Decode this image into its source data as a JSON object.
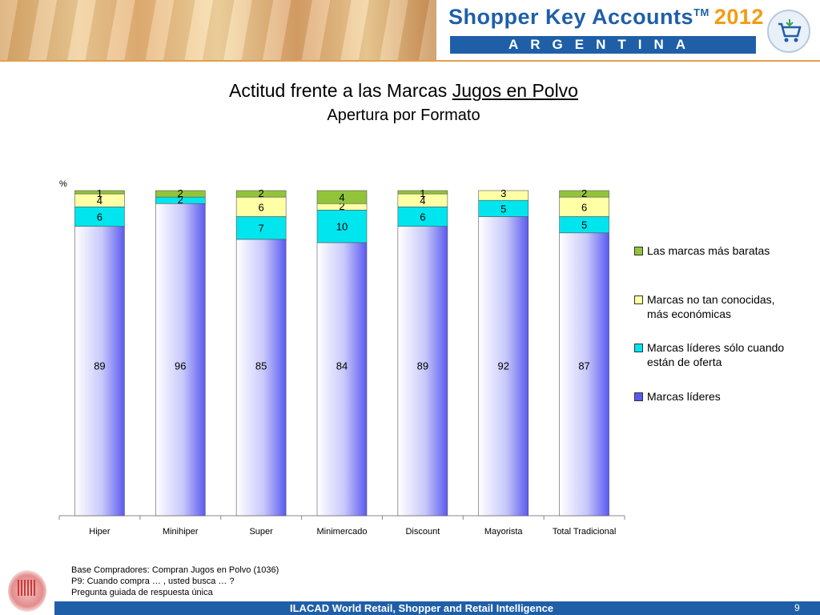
{
  "header": {
    "brand": "Shopper Key Accounts",
    "trademark": "TM",
    "year": "2012",
    "country": "ARGENTINA"
  },
  "title": {
    "prefix": "Actitud frente a las Marcas",
    "underlined": "Jugos en Polvo",
    "subtitle": "Apertura por Formato"
  },
  "colors": {
    "lideres": "#5a5af0",
    "oferta": "#00e5ee",
    "no_conocidas": "#ffffa6",
    "baratas": "#92c43a",
    "header_blue": "#1f5fa8",
    "year_orange": "#f39c12"
  },
  "chart_data": {
    "type": "bar",
    "stacked": true,
    "y_unit": "%",
    "ylim": [
      0,
      100
    ],
    "grid": false,
    "legend_position": "right",
    "categories": [
      "Hiper",
      "Minihiper",
      "Super",
      "Minimercado",
      "Discount",
      "Mayorista",
      "Total Tradicional"
    ],
    "series": [
      {
        "name": "Marcas líderes",
        "values": [
          89,
          96,
          85,
          84,
          89,
          92,
          87
        ]
      },
      {
        "name": "Marcas líderes sólo cuando están de oferta",
        "values": [
          6,
          2,
          7,
          10,
          6,
          5,
          5
        ]
      },
      {
        "name": "Marcas no tan conocidas, más económicas",
        "values": [
          4,
          null,
          6,
          2,
          4,
          3,
          6
        ]
      },
      {
        "name": "Las marcas más baratas",
        "values": [
          1,
          2,
          2,
          4,
          1,
          null,
          2
        ]
      }
    ]
  },
  "legend": [
    {
      "label": "Las marcas más baratas",
      "color": "#92c43a"
    },
    {
      "label": "Marcas no tan conocidas, más económicas",
      "color": "#ffffa6"
    },
    {
      "label": "Marcas líderes sólo cuando están de oferta",
      "color": "#00e5ee"
    },
    {
      "label": "Marcas líderes",
      "color": "#5a5af0"
    }
  ],
  "notes": [
    "Base Compradores: Compran Jugos en Polvo (1036)",
    "P9: Cuando compra … , usted busca … ?",
    "Pregunta guiada de respuesta única"
  ],
  "footer": {
    "text": "ILACAD World Retail, Shopper and Retail Intelligence",
    "page": "9"
  }
}
